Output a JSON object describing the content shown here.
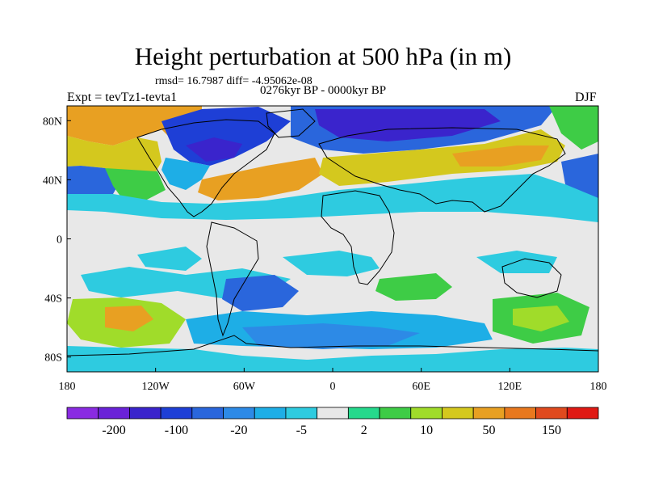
{
  "header": {
    "title": "Height perturbation at 500 hPa (in m)",
    "stats": "rmsd= 16.7987 diff= -4.95062e-08",
    "period": "0276kyr BP - 0000kyr BP",
    "experiment": "Expt = tevTz1-tevta1",
    "season": "DJF"
  },
  "map": {
    "projection": "cylindrical equidistant",
    "lon_range": [
      -180,
      180
    ],
    "lat_range": [
      -90,
      90
    ],
    "x_ticks": [
      {
        "lon": -180,
        "label": "180"
      },
      {
        "lon": -120,
        "label": "120W"
      },
      {
        "lon": -60,
        "label": "60W"
      },
      {
        "lon": 0,
        "label": "0"
      },
      {
        "lon": 60,
        "label": "60E"
      },
      {
        "lon": 120,
        "label": "120E"
      },
      {
        "lon": 180,
        "label": "180"
      }
    ],
    "y_ticks": [
      {
        "lat": 80,
        "label": "80N"
      },
      {
        "lat": 40,
        "label": "40N"
      },
      {
        "lat": 0,
        "label": "0"
      },
      {
        "lat": -40,
        "label": "40S"
      },
      {
        "lat": -80,
        "label": "80S"
      }
    ]
  },
  "colorbar": {
    "colors": [
      "#8a2be2",
      "#6a22d8",
      "#3a24cc",
      "#1e3fd6",
      "#2a66dc",
      "#2d8ae6",
      "#1eaee6",
      "#2ecbe0",
      "#e8e8e8",
      "#26d98c",
      "#3ecc46",
      "#a0dc2a",
      "#d4c81e",
      "#e8a022",
      "#e8781e",
      "#e04a1e",
      "#e01a14"
    ],
    "labels": [
      "-200",
      "-100",
      "-20",
      "-5",
      "2",
      "10",
      "50",
      "150"
    ]
  }
}
